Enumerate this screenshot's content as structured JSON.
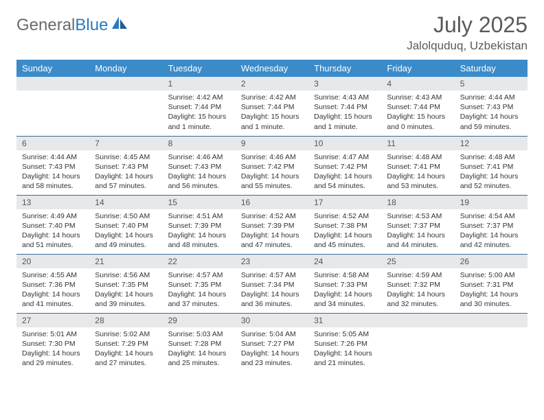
{
  "logo": {
    "text1": "General",
    "text2": "Blue"
  },
  "title": "July 2025",
  "location": "Jalolquduq, Uzbekistan",
  "colors": {
    "header_bg": "#3b8bc9",
    "header_text": "#ffffff",
    "daynum_bg": "#e6e8ea",
    "border": "#3b6a94",
    "logo_gray": "#6b6b6b",
    "logo_blue": "#2a7ac0",
    "title_color": "#5a5a5a"
  },
  "typography": {
    "month_title_size": 32,
    "location_size": 17,
    "weekday_size": 13,
    "daynum_size": 12,
    "content_size": 10.5
  },
  "weekdays": [
    "Sunday",
    "Monday",
    "Tuesday",
    "Wednesday",
    "Thursday",
    "Friday",
    "Saturday"
  ],
  "weeks": [
    [
      null,
      null,
      {
        "n": "1",
        "sunrise": "Sunrise: 4:42 AM",
        "sunset": "Sunset: 7:44 PM",
        "daylight": "Daylight: 15 hours and 1 minute."
      },
      {
        "n": "2",
        "sunrise": "Sunrise: 4:42 AM",
        "sunset": "Sunset: 7:44 PM",
        "daylight": "Daylight: 15 hours and 1 minute."
      },
      {
        "n": "3",
        "sunrise": "Sunrise: 4:43 AM",
        "sunset": "Sunset: 7:44 PM",
        "daylight": "Daylight: 15 hours and 1 minute."
      },
      {
        "n": "4",
        "sunrise": "Sunrise: 4:43 AM",
        "sunset": "Sunset: 7:44 PM",
        "daylight": "Daylight: 15 hours and 0 minutes."
      },
      {
        "n": "5",
        "sunrise": "Sunrise: 4:44 AM",
        "sunset": "Sunset: 7:43 PM",
        "daylight": "Daylight: 14 hours and 59 minutes."
      }
    ],
    [
      {
        "n": "6",
        "sunrise": "Sunrise: 4:44 AM",
        "sunset": "Sunset: 7:43 PM",
        "daylight": "Daylight: 14 hours and 58 minutes."
      },
      {
        "n": "7",
        "sunrise": "Sunrise: 4:45 AM",
        "sunset": "Sunset: 7:43 PM",
        "daylight": "Daylight: 14 hours and 57 minutes."
      },
      {
        "n": "8",
        "sunrise": "Sunrise: 4:46 AM",
        "sunset": "Sunset: 7:43 PM",
        "daylight": "Daylight: 14 hours and 56 minutes."
      },
      {
        "n": "9",
        "sunrise": "Sunrise: 4:46 AM",
        "sunset": "Sunset: 7:42 PM",
        "daylight": "Daylight: 14 hours and 55 minutes."
      },
      {
        "n": "10",
        "sunrise": "Sunrise: 4:47 AM",
        "sunset": "Sunset: 7:42 PM",
        "daylight": "Daylight: 14 hours and 54 minutes."
      },
      {
        "n": "11",
        "sunrise": "Sunrise: 4:48 AM",
        "sunset": "Sunset: 7:41 PM",
        "daylight": "Daylight: 14 hours and 53 minutes."
      },
      {
        "n": "12",
        "sunrise": "Sunrise: 4:48 AM",
        "sunset": "Sunset: 7:41 PM",
        "daylight": "Daylight: 14 hours and 52 minutes."
      }
    ],
    [
      {
        "n": "13",
        "sunrise": "Sunrise: 4:49 AM",
        "sunset": "Sunset: 7:40 PM",
        "daylight": "Daylight: 14 hours and 51 minutes."
      },
      {
        "n": "14",
        "sunrise": "Sunrise: 4:50 AM",
        "sunset": "Sunset: 7:40 PM",
        "daylight": "Daylight: 14 hours and 49 minutes."
      },
      {
        "n": "15",
        "sunrise": "Sunrise: 4:51 AM",
        "sunset": "Sunset: 7:39 PM",
        "daylight": "Daylight: 14 hours and 48 minutes."
      },
      {
        "n": "16",
        "sunrise": "Sunrise: 4:52 AM",
        "sunset": "Sunset: 7:39 PM",
        "daylight": "Daylight: 14 hours and 47 minutes."
      },
      {
        "n": "17",
        "sunrise": "Sunrise: 4:52 AM",
        "sunset": "Sunset: 7:38 PM",
        "daylight": "Daylight: 14 hours and 45 minutes."
      },
      {
        "n": "18",
        "sunrise": "Sunrise: 4:53 AM",
        "sunset": "Sunset: 7:37 PM",
        "daylight": "Daylight: 14 hours and 44 minutes."
      },
      {
        "n": "19",
        "sunrise": "Sunrise: 4:54 AM",
        "sunset": "Sunset: 7:37 PM",
        "daylight": "Daylight: 14 hours and 42 minutes."
      }
    ],
    [
      {
        "n": "20",
        "sunrise": "Sunrise: 4:55 AM",
        "sunset": "Sunset: 7:36 PM",
        "daylight": "Daylight: 14 hours and 41 minutes."
      },
      {
        "n": "21",
        "sunrise": "Sunrise: 4:56 AM",
        "sunset": "Sunset: 7:35 PM",
        "daylight": "Daylight: 14 hours and 39 minutes."
      },
      {
        "n": "22",
        "sunrise": "Sunrise: 4:57 AM",
        "sunset": "Sunset: 7:35 PM",
        "daylight": "Daylight: 14 hours and 37 minutes."
      },
      {
        "n": "23",
        "sunrise": "Sunrise: 4:57 AM",
        "sunset": "Sunset: 7:34 PM",
        "daylight": "Daylight: 14 hours and 36 minutes."
      },
      {
        "n": "24",
        "sunrise": "Sunrise: 4:58 AM",
        "sunset": "Sunset: 7:33 PM",
        "daylight": "Daylight: 14 hours and 34 minutes."
      },
      {
        "n": "25",
        "sunrise": "Sunrise: 4:59 AM",
        "sunset": "Sunset: 7:32 PM",
        "daylight": "Daylight: 14 hours and 32 minutes."
      },
      {
        "n": "26",
        "sunrise": "Sunrise: 5:00 AM",
        "sunset": "Sunset: 7:31 PM",
        "daylight": "Daylight: 14 hours and 30 minutes."
      }
    ],
    [
      {
        "n": "27",
        "sunrise": "Sunrise: 5:01 AM",
        "sunset": "Sunset: 7:30 PM",
        "daylight": "Daylight: 14 hours and 29 minutes."
      },
      {
        "n": "28",
        "sunrise": "Sunrise: 5:02 AM",
        "sunset": "Sunset: 7:29 PM",
        "daylight": "Daylight: 14 hours and 27 minutes."
      },
      {
        "n": "29",
        "sunrise": "Sunrise: 5:03 AM",
        "sunset": "Sunset: 7:28 PM",
        "daylight": "Daylight: 14 hours and 25 minutes."
      },
      {
        "n": "30",
        "sunrise": "Sunrise: 5:04 AM",
        "sunset": "Sunset: 7:27 PM",
        "daylight": "Daylight: 14 hours and 23 minutes."
      },
      {
        "n": "31",
        "sunrise": "Sunrise: 5:05 AM",
        "sunset": "Sunset: 7:26 PM",
        "daylight": "Daylight: 14 hours and 21 minutes."
      },
      null,
      null
    ]
  ]
}
